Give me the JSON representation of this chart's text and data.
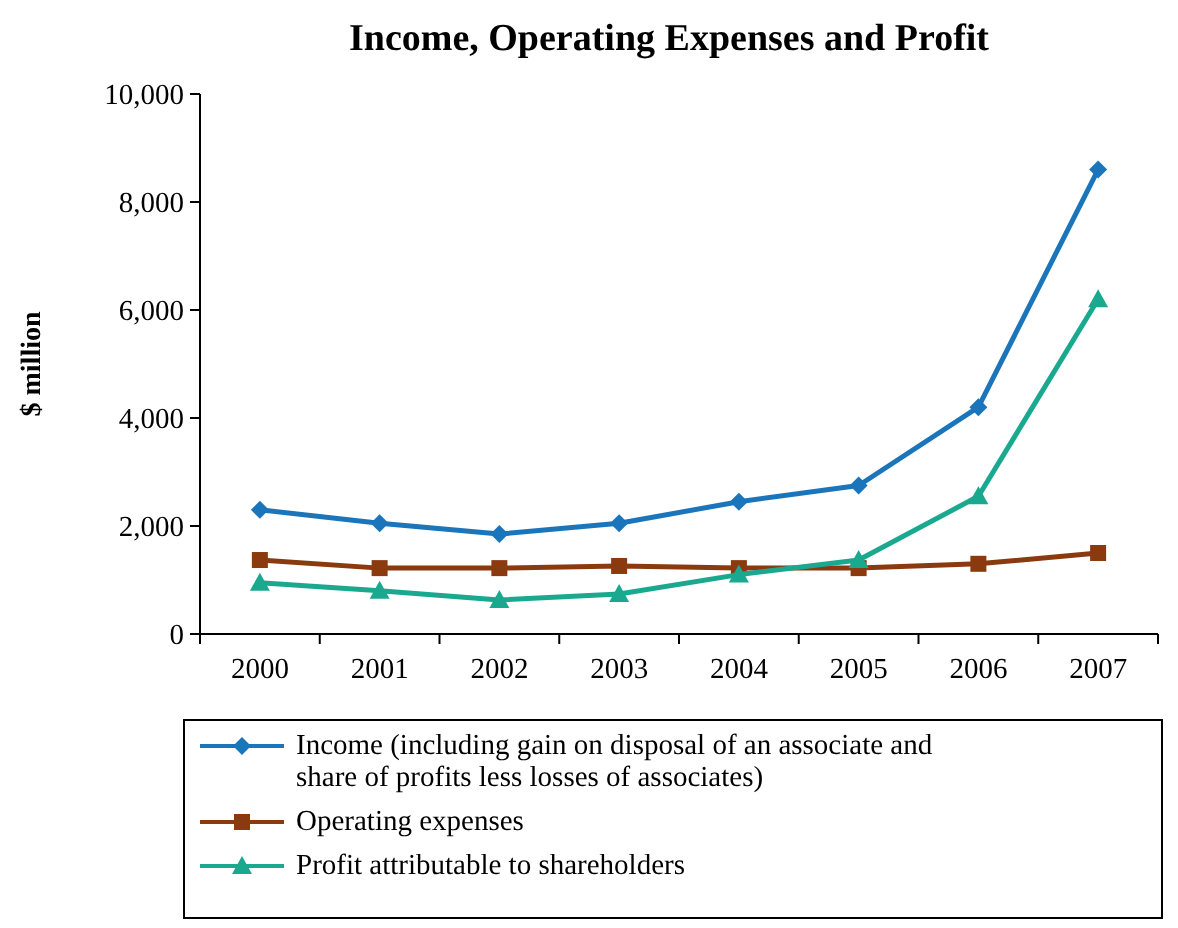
{
  "chart_data": {
    "type": "line",
    "title": "Income, Operating Expenses and Profit",
    "ylabel": "$ million",
    "categories": [
      "2000",
      "2001",
      "2002",
      "2003",
      "2004",
      "2005",
      "2006",
      "2007"
    ],
    "ylim": [
      0,
      10000
    ],
    "yticks": [
      {
        "value": 0,
        "label": "0"
      },
      {
        "value": 2000,
        "label": "2,000"
      },
      {
        "value": 4000,
        "label": "4,000"
      },
      {
        "value": 6000,
        "label": "6,000"
      },
      {
        "value": 8000,
        "label": "8,000"
      },
      {
        "value": 10000,
        "label": "10,000"
      }
    ],
    "grid": false,
    "legend": "bottom",
    "series": [
      {
        "name": "Income (including gain on disposal of an associate and share of profits less losses of associates)",
        "color": "#1b75bb",
        "marker": "diamond",
        "values": [
          2300,
          2050,
          1850,
          2050,
          2450,
          2750,
          4200,
          8600
        ]
      },
      {
        "name": "Operating expenses",
        "color": "#8b3a10",
        "marker": "square",
        "values": [
          1370,
          1220,
          1220,
          1260,
          1220,
          1220,
          1300,
          1500
        ]
      },
      {
        "name": "Profit attributable to shareholders",
        "color": "#1aa98f",
        "marker": "triangle",
        "values": [
          950,
          800,
          630,
          740,
          1100,
          1370,
          2550,
          6200
        ]
      }
    ]
  }
}
